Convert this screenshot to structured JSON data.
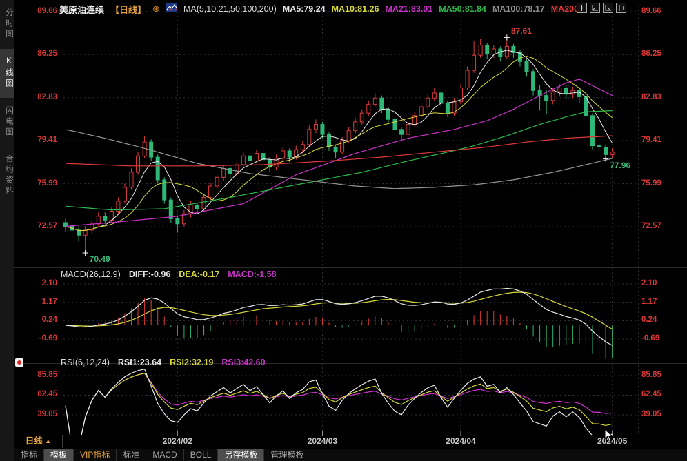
{
  "header": {
    "title": "美原油连续",
    "period_tag": "【日线】",
    "add_icon": "⊕",
    "ma_settings": "MA(5,10,21,50,100,200)",
    "readouts": [
      {
        "text": "MA5:79.24",
        "color": "#e8e8e8"
      },
      {
        "text": "MA10:81.26",
        "color": "#d8d83a"
      },
      {
        "text": "MA21:83.01",
        "color": "#cc33cc"
      },
      {
        "text": "MA50:81.84",
        "color": "#2db84d"
      },
      {
        "text": "MA100:78.17",
        "color": "#909090"
      },
      {
        "text": "MA200",
        "color": "#e23a3a"
      }
    ]
  },
  "sidebar": {
    "items": [
      {
        "label": "分时图",
        "selected": false
      },
      {
        "label": "K线图",
        "selected": true
      },
      {
        "label": "闪电图",
        "selected": false
      },
      {
        "label": "合约资料",
        "selected": false
      }
    ]
  },
  "macd_header": {
    "name": "MACD(26,12,9)",
    "readouts": [
      {
        "text": "DIFF:-0.96",
        "color": "#e8e8e8"
      },
      {
        "text": "DEA:-0.17",
        "color": "#d8d83a"
      },
      {
        "text": "MACD:-1.58",
        "color": "#cc33cc"
      }
    ]
  },
  "rsi_header": {
    "name": "RSI(6,12,24)",
    "readouts": [
      {
        "text": "RSI1:23.64",
        "color": "#e8e8e8"
      },
      {
        "text": "RSI2:32.19",
        "color": "#d8d83a"
      },
      {
        "text": "RSI3:42.60",
        "color": "#cc33cc"
      }
    ]
  },
  "period_row": {
    "label": "日线",
    "arrow": "▲"
  },
  "tabs": [
    {
      "label": "指标",
      "state": "normal"
    },
    {
      "label": "模板",
      "state": "selected"
    },
    {
      "label": "VIP指标",
      "state": "vip"
    },
    {
      "label": "标准",
      "state": "normal"
    },
    {
      "label": "MACD",
      "state": "normal"
    },
    {
      "label": "BOLL",
      "state": "normal"
    },
    {
      "label": "另存模板",
      "state": "selected"
    },
    {
      "label": "管理模板",
      "state": "normal"
    }
  ],
  "colors": {
    "up": "#e23a3a",
    "down": "#2db878",
    "ma5": "#eaeaea",
    "ma10": "#d8d83a",
    "ma21": "#cc33cc",
    "ma50": "#2db84d",
    "ma100": "#969696",
    "ma200": "#e23a3a",
    "axis_text": "#d93636",
    "grid": "#303038",
    "divider": "#2a2a2a",
    "annotation_green": "#3cb878",
    "annotation_red": "#e23a3a",
    "macd_dif": "#eaeaea",
    "macd_dea": "#d8d83a",
    "rsi1": "#eaeaea",
    "rsi2": "#d8d83a",
    "rsi3": "#cc33cc"
  },
  "chart_data": {
    "type": "candlestick",
    "title": "美原油连续 日线 (US Crude Oil Continuous, Daily)",
    "price_axis": {
      "labels": [
        "89.66",
        "86.25",
        "82.83",
        "79.41",
        "75.99",
        "72.57"
      ],
      "values": [
        89.66,
        86.25,
        82.83,
        79.41,
        75.99,
        72.57
      ]
    },
    "macd_axis": {
      "labels": [
        "2.10",
        "1.17",
        "0.24",
        "-0.69"
      ],
      "values": [
        2.1,
        1.17,
        0.24,
        -0.69
      ]
    },
    "rsi_axis": {
      "labels": [
        "85.85",
        "62.45",
        "39.05"
      ],
      "values": [
        85.85,
        62.45,
        39.05
      ]
    },
    "months": [
      {
        "label": "2024/02",
        "index": 17
      },
      {
        "label": "2024/03",
        "index": 39
      },
      {
        "label": "2024/04",
        "index": 60
      },
      {
        "label": "2024/05",
        "index": 83
      }
    ],
    "ohlc": [
      [
        72.9,
        73.2,
        72.2,
        72.6
      ],
      [
        72.6,
        72.8,
        71.8,
        72.3
      ],
      [
        72.3,
        72.6,
        71.4,
        71.9
      ],
      [
        71.9,
        72.6,
        70.49,
        72.3
      ],
      [
        72.3,
        73.1,
        72.0,
        72.8
      ],
      [
        72.8,
        73.7,
        72.6,
        73.4
      ],
      [
        73.4,
        73.7,
        72.8,
        73.1
      ],
      [
        73.1,
        74.1,
        72.9,
        73.8
      ],
      [
        73.8,
        74.9,
        73.6,
        74.6
      ],
      [
        74.6,
        76.0,
        74.4,
        75.7
      ],
      [
        75.7,
        77.2,
        75.5,
        76.9
      ],
      [
        76.9,
        78.5,
        76.7,
        78.2
      ],
      [
        78.2,
        79.8,
        78.0,
        79.3
      ],
      [
        79.3,
        79.5,
        77.8,
        78.1
      ],
      [
        78.1,
        78.3,
        76.0,
        76.3
      ],
      [
        76.3,
        76.5,
        74.4,
        74.7
      ],
      [
        74.7,
        74.9,
        72.9,
        73.2
      ],
      [
        73.2,
        73.4,
        72.1,
        72.8
      ],
      [
        72.8,
        73.9,
        72.6,
        73.6
      ],
      [
        73.6,
        74.6,
        73.3,
        74.3
      ],
      [
        74.3,
        74.5,
        73.6,
        74.0
      ],
      [
        74.0,
        75.2,
        73.8,
        74.9
      ],
      [
        74.9,
        76.1,
        74.7,
        75.8
      ],
      [
        75.8,
        76.8,
        75.5,
        76.5
      ],
      [
        76.5,
        77.5,
        76.2,
        77.2
      ],
      [
        77.2,
        77.4,
        76.4,
        76.8
      ],
      [
        76.8,
        77.8,
        76.6,
        77.5
      ],
      [
        77.5,
        78.5,
        77.3,
        78.2
      ],
      [
        78.2,
        78.4,
        77.4,
        77.8
      ],
      [
        77.8,
        78.7,
        77.6,
        78.4
      ],
      [
        78.4,
        78.6,
        77.5,
        77.9
      ],
      [
        77.9,
        78.1,
        76.9,
        77.3
      ],
      [
        77.3,
        78.3,
        77.1,
        78.0
      ],
      [
        78.0,
        78.9,
        77.8,
        78.6
      ],
      [
        78.6,
        78.8,
        77.7,
        78.1
      ],
      [
        78.1,
        79.0,
        77.9,
        78.7
      ],
      [
        78.7,
        79.4,
        78.4,
        79.1
      ],
      [
        79.1,
        80.6,
        78.9,
        80.3
      ],
      [
        80.3,
        81.1,
        80.0,
        80.7
      ],
      [
        80.7,
        80.9,
        79.6,
        79.9
      ],
      [
        79.9,
        80.1,
        78.6,
        78.9
      ],
      [
        78.9,
        79.1,
        78.0,
        78.5
      ],
      [
        78.5,
        79.7,
        78.3,
        79.4
      ],
      [
        79.4,
        80.5,
        79.2,
        80.2
      ],
      [
        80.2,
        81.2,
        80.0,
        80.9
      ],
      [
        80.9,
        81.9,
        80.7,
        81.6
      ],
      [
        81.6,
        82.6,
        81.4,
        82.3
      ],
      [
        82.3,
        83.2,
        82.1,
        82.8
      ],
      [
        82.8,
        83.0,
        81.6,
        81.9
      ],
      [
        81.9,
        82.1,
        80.8,
        81.1
      ],
      [
        81.1,
        81.3,
        80.0,
        80.3
      ],
      [
        80.3,
        80.5,
        79.5,
        79.9
      ],
      [
        79.9,
        81.0,
        79.7,
        80.7
      ],
      [
        80.7,
        81.7,
        80.5,
        81.4
      ],
      [
        81.4,
        82.4,
        81.2,
        82.1
      ],
      [
        82.1,
        83.1,
        81.9,
        82.8
      ],
      [
        82.8,
        83.6,
        82.6,
        83.2
      ],
      [
        83.2,
        83.4,
        82.1,
        82.4
      ],
      [
        82.4,
        82.6,
        81.3,
        81.6
      ],
      [
        81.6,
        82.8,
        81.4,
        82.5
      ],
      [
        82.5,
        83.9,
        82.3,
        83.6
      ],
      [
        83.6,
        85.3,
        83.4,
        85.0
      ],
      [
        85.0,
        87.3,
        84.8,
        86.2
      ],
      [
        86.2,
        87.5,
        86.0,
        87.0
      ],
      [
        87.0,
        87.2,
        85.9,
        86.3
      ],
      [
        86.3,
        87.0,
        86.0,
        86.7
      ],
      [
        86.7,
        86.9,
        85.7,
        86.1
      ],
      [
        86.1,
        87.61,
        85.9,
        86.9
      ],
      [
        86.9,
        87.1,
        86.0,
        86.4
      ],
      [
        86.4,
        86.6,
        85.3,
        85.7
      ],
      [
        85.7,
        85.9,
        84.5,
        84.9
      ],
      [
        84.9,
        85.1,
        83.0,
        83.4
      ],
      [
        83.4,
        83.8,
        81.8,
        83.0
      ],
      [
        83.0,
        83.4,
        81.5,
        82.6
      ],
      [
        82.6,
        83.6,
        82.3,
        83.3
      ],
      [
        83.3,
        83.9,
        82.9,
        83.6
      ],
      [
        83.6,
        83.8,
        82.7,
        83.1
      ],
      [
        83.1,
        83.7,
        82.8,
        83.4
      ],
      [
        83.4,
        83.6,
        82.4,
        82.9
      ],
      [
        82.9,
        83.1,
        81.1,
        81.4
      ],
      [
        81.4,
        81.6,
        78.7,
        79.0
      ],
      [
        79.0,
        79.6,
        78.5,
        78.9
      ],
      [
        78.9,
        79.1,
        77.96,
        78.3
      ],
      [
        78.3,
        78.8,
        78.0,
        78.5
      ]
    ],
    "overlays": {
      "ma21": [
        [
          0,
          72.6
        ],
        [
          9,
          73.0
        ],
        [
          17,
          73.4
        ],
        [
          27,
          74.4
        ],
        [
          35,
          76.7
        ],
        [
          44,
          78.4
        ],
        [
          52,
          79.6
        ],
        [
          59,
          80.3
        ],
        [
          64,
          81.0
        ],
        [
          68,
          81.9
        ],
        [
          72,
          83.0
        ],
        [
          76,
          84.0
        ],
        [
          78,
          84.3
        ],
        [
          83,
          83.0
        ]
      ],
      "ma50": [
        [
          0,
          74.2
        ],
        [
          7,
          73.9
        ],
        [
          15,
          74.0
        ],
        [
          25,
          74.9
        ],
        [
          35,
          75.9
        ],
        [
          45,
          76.9
        ],
        [
          52,
          77.8
        ],
        [
          58,
          78.5
        ],
        [
          62,
          79.0
        ],
        [
          67,
          79.8
        ],
        [
          72,
          80.7
        ],
        [
          76,
          81.3
        ],
        [
          79,
          81.7
        ],
        [
          83,
          81.8
        ]
      ],
      "ma100": [
        [
          0,
          80.3
        ],
        [
          6,
          79.6
        ],
        [
          12,
          78.8
        ],
        [
          20,
          77.6
        ],
        [
          28,
          76.8
        ],
        [
          36,
          76.3
        ],
        [
          44,
          75.8
        ],
        [
          50,
          75.6
        ],
        [
          56,
          75.7
        ],
        [
          62,
          75.9
        ],
        [
          68,
          76.3
        ],
        [
          74,
          76.9
        ],
        [
          79,
          77.5
        ],
        [
          83,
          78.0
        ]
      ],
      "ma200": [
        [
          0,
          77.6
        ],
        [
          10,
          77.4
        ],
        [
          20,
          77.4
        ],
        [
          30,
          77.5
        ],
        [
          40,
          77.8
        ],
        [
          48,
          78.1
        ],
        [
          56,
          78.5
        ],
        [
          64,
          78.9
        ],
        [
          70,
          79.3
        ],
        [
          76,
          79.6
        ],
        [
          83,
          79.8
        ]
      ]
    },
    "indicators": {
      "sma_periods": [
        5,
        10
      ],
      "macd_params": [
        26,
        12,
        9
      ],
      "rsi_periods": [
        6,
        12,
        24
      ]
    },
    "annotations": [
      {
        "label": "87.61",
        "index": 67,
        "price": 87.61,
        "place": "above",
        "color": "#e23a3a"
      },
      {
        "label": "70.49",
        "index": 3,
        "price": 70.49,
        "place": "below",
        "color": "#3cb878"
      },
      {
        "label": "77.96",
        "index": 82,
        "price": 77.96,
        "place": "below",
        "color": "#3cb878"
      }
    ]
  }
}
